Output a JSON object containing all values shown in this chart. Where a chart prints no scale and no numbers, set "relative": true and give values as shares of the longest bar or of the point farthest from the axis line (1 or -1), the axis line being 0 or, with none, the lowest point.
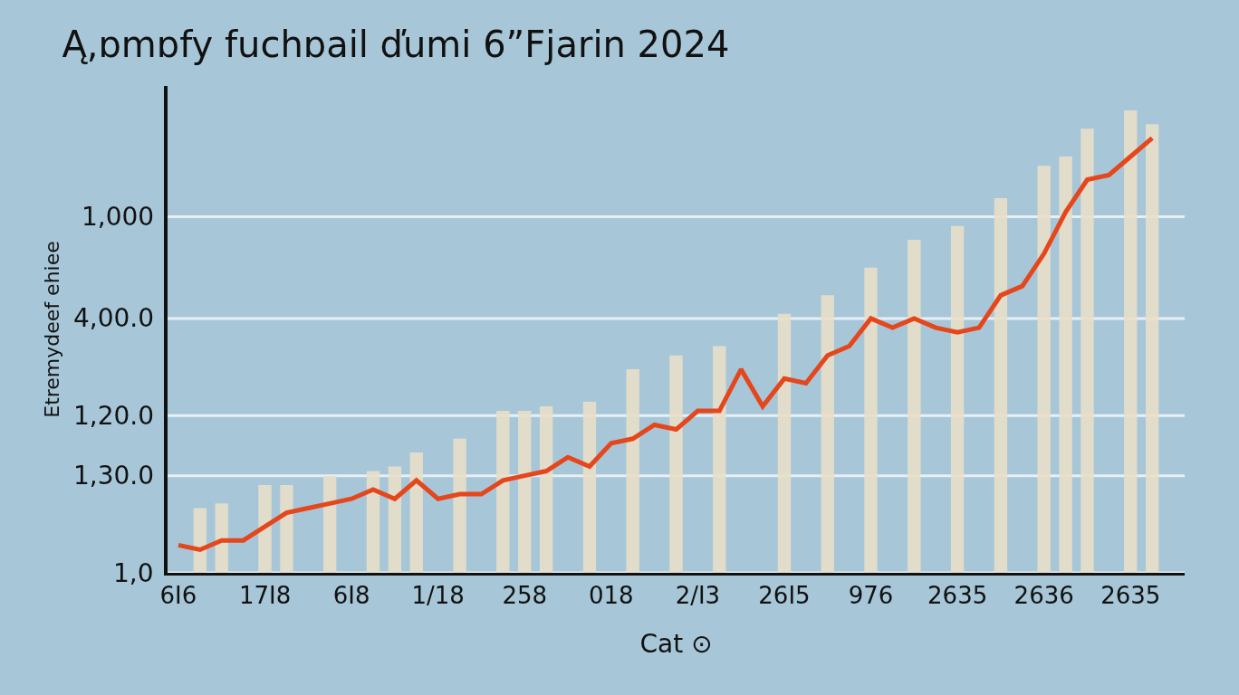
{
  "chart_data": {
    "type": "line",
    "title": "Ą,ɒmɒfy fuchɒail ďumi 6”Fjarin 2024",
    "xlabel": "Cat ⊙",
    "ylabel": "Etremydeef ehiee",
    "relative": true,
    "categories": [
      "6I6",
      null,
      null,
      null,
      "17I8",
      null,
      null,
      null,
      "6I8",
      null,
      null,
      null,
      "1/18",
      null,
      null,
      null,
      "258",
      null,
      null,
      null,
      "018",
      null,
      null,
      null,
      "2/I3",
      null,
      null,
      null,
      "26I5",
      null,
      null,
      null,
      "976",
      null,
      null,
      null,
      "2635",
      null,
      null,
      null,
      "2636",
      null,
      null,
      null,
      "2635",
      null,
      null
    ],
    "ref_lines": [
      {
        "axis": "y",
        "value": 0
      },
      {
        "axis": "y",
        "value": 0.21
      },
      {
        "axis": "y",
        "value": 0.34
      },
      {
        "axis": "y",
        "value": 0.55
      },
      {
        "axis": "y",
        "value": 0.77
      }
    ],
    "annotations": [
      "1,0",
      "1,30.0",
      "1,20.0",
      "4,00.0",
      "1,000"
    ],
    "line_style": "solid",
    "series": [
      {
        "type": "bar",
        "color": "#e9dfc9",
        "values": [
          null,
          0.14,
          0.15,
          null,
          0.19,
          0.19,
          null,
          0.21,
          null,
          0.22,
          0.23,
          0.26,
          null,
          0.29,
          null,
          0.35,
          0.35,
          0.36,
          null,
          0.37,
          null,
          0.44,
          null,
          0.47,
          null,
          0.49,
          null,
          null,
          0.56,
          null,
          0.6,
          null,
          0.66,
          null,
          0.72,
          null,
          0.75,
          null,
          0.81,
          null,
          0.88,
          0.9,
          0.96,
          null,
          1,
          0.97,
          null
        ]
      },
      {
        "color": "#e5461c",
        "values": [
          0.06,
          0.05,
          0.07,
          0.07,
          0.1,
          0.13,
          0.14,
          0.15,
          0.16,
          0.18,
          0.16,
          0.2,
          0.16,
          0.17,
          0.17,
          0.2,
          0.21,
          0.22,
          0.25,
          0.23,
          0.28,
          0.29,
          0.32,
          0.31,
          0.35,
          0.35,
          0.44,
          0.36,
          0.42,
          0.41,
          0.47,
          0.49,
          0.55,
          0.53,
          0.55,
          0.53,
          0.52,
          0.53,
          0.6,
          0.62,
          0.69,
          0.78,
          0.85,
          0.86,
          0.9,
          0.94,
          null
        ]
      }
    ]
  }
}
